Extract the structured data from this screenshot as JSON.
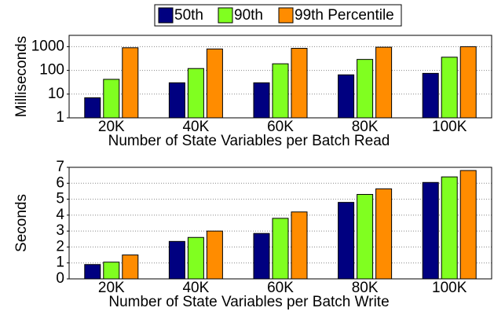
{
  "chart_data": [
    {
      "type": "bar",
      "log_y": true,
      "ylabel": "Milliseconds",
      "xlabel": "Number of State Variables per Batch Read",
      "categories": [
        "20K",
        "40K",
        "60K",
        "80K",
        "100K"
      ],
      "series": [
        {
          "name": "50th",
          "color": "#000080",
          "values": [
            7,
            30,
            30,
            65,
            75
          ]
        },
        {
          "name": "90th",
          "color": "#80ff20",
          "values": [
            42,
            120,
            190,
            290,
            360
          ]
        },
        {
          "name": "99th Percentile",
          "color": "#ff8c00",
          "values": [
            900,
            800,
            850,
            950,
            1000
          ]
        }
      ],
      "ylim": [
        1,
        3000
      ],
      "yticks": [
        1,
        10,
        100,
        1000
      ],
      "grid": true
    },
    {
      "type": "bar",
      "log_y": false,
      "ylabel": "Seconds",
      "xlabel": "Number of State Variables per Batch Write",
      "categories": [
        "20K",
        "40K",
        "60K",
        "80K",
        "100K"
      ],
      "series": [
        {
          "color": "#000080",
          "values": [
            0.9,
            2.35,
            2.85,
            4.8,
            6.05
          ]
        },
        {
          "color": "#80ff20",
          "values": [
            1.05,
            2.6,
            3.8,
            5.3,
            6.4
          ]
        },
        {
          "color": "#ff8c00",
          "values": [
            1.5,
            3.0,
            4.2,
            5.65,
            6.8
          ]
        }
      ],
      "ylim": [
        0,
        7
      ],
      "yticks": [
        0,
        1,
        2,
        3,
        4,
        5,
        6,
        7
      ],
      "grid": true
    }
  ]
}
